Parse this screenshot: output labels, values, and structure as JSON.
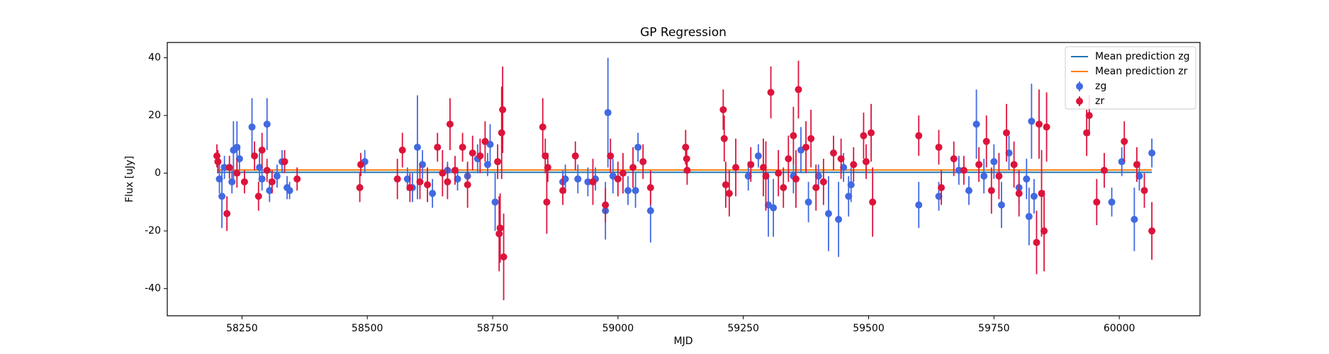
{
  "chart_data": {
    "type": "scatter",
    "title": "GP Regression",
    "x_label": "MJD",
    "y_label": "Flux [uJy]",
    "xlim": [
      58101,
      60161
    ],
    "ylim": [
      -49.4,
      45.3
    ],
    "xticks": [
      58250,
      58500,
      58750,
      59000,
      59250,
      59500,
      59750,
      60000
    ],
    "yticks": [
      -40,
      -20,
      0,
      20,
      40
    ],
    "legend": "upper right",
    "series": [
      {
        "name": "Mean prediction zg",
        "type": "line",
        "color": "#1f77b4",
        "x": [
          58200,
          60065
        ],
        "values": [
          0.3,
          0.3
        ]
      },
      {
        "name": "Mean prediction zr",
        "type": "line",
        "color": "#ff7f0e",
        "x": [
          58200,
          60065
        ],
        "values": [
          1.1,
          1.1
        ]
      },
      {
        "name": "zg",
        "type": "errorbar",
        "color": "#4169e1",
        "x": [
          58205,
          58210,
          58215,
          58230,
          58233,
          58240,
          58245,
          58270,
          58285,
          58290,
          58300,
          58305,
          58320,
          58330,
          58340,
          58345,
          58495,
          58580,
          58590,
          58600,
          58610,
          58630,
          58660,
          58680,
          58700,
          58720,
          58740,
          58745,
          58755,
          58890,
          58895,
          58920,
          58940,
          58955,
          58975,
          58980,
          58990,
          59020,
          59035,
          59040,
          59065,
          59260,
          59280,
          59300,
          59310,
          59350,
          59365,
          59380,
          59400,
          59420,
          59440,
          59450,
          59460,
          59465,
          59600,
          59640,
          59680,
          59700,
          59715,
          59730,
          59750,
          59765,
          59780,
          59800,
          59815,
          59820,
          59825,
          59830,
          59985,
          60005,
          60030,
          60040,
          60065
        ],
        "values": [
          -2,
          -8,
          2,
          -3,
          8,
          9,
          5,
          16,
          2,
          -2,
          17,
          -6,
          -1,
          4,
          -5,
          -6,
          4,
          -2,
          -5,
          9,
          3,
          -7,
          1,
          -2,
          -1,
          5,
          3,
          10,
          -10,
          -3,
          -2,
          -2,
          -3,
          -2,
          -13,
          21,
          -1,
          -6,
          -6,
          9,
          -13,
          -1,
          6,
          -11,
          -12,
          -1,
          8,
          -10,
          -1,
          -14,
          -16,
          2,
          -8,
          -4,
          -11,
          -8,
          1,
          -6,
          17,
          -1,
          4,
          -11,
          7,
          -5,
          -2,
          -15,
          18,
          -8,
          -10,
          4,
          -16,
          -1,
          7
        ],
        "errors": [
          5,
          11,
          4,
          4,
          10,
          9,
          4,
          10,
          5,
          4,
          9,
          4,
          4,
          4,
          4,
          3,
          4,
          4,
          5,
          18,
          5,
          5,
          3,
          4,
          4,
          5,
          4,
          7,
          10,
          4,
          5,
          5,
          5,
          4,
          10,
          19,
          6,
          5,
          6,
          5,
          11,
          5,
          4,
          11,
          10,
          6,
          8,
          7,
          4,
          13,
          13,
          5,
          7,
          6,
          8,
          5,
          5,
          5,
          12,
          6,
          6,
          8,
          6,
          6,
          7,
          10,
          13,
          6,
          5,
          5,
          11,
          5,
          5
        ]
      },
      {
        "name": "zr",
        "type": "errorbar",
        "color": "#dc143c",
        "x": [
          58200,
          58202,
          58220,
          58225,
          58240,
          58255,
          58275,
          58283,
          58290,
          58300,
          58310,
          58335,
          58360,
          58485,
          58487,
          58560,
          58570,
          58585,
          58605,
          58620,
          58640,
          58650,
          58660,
          58665,
          58675,
          58690,
          58700,
          58710,
          58725,
          58735,
          58760,
          58763,
          58765,
          58768,
          58770,
          58772,
          58850,
          58855,
          58858,
          58860,
          58890,
          58915,
          58950,
          58975,
          58985,
          59000,
          59010,
          59030,
          59050,
          59065,
          59135,
          59137,
          59138,
          59210,
          59212,
          59215,
          59222,
          59235,
          59265,
          59290,
          59295,
          59305,
          59320,
          59330,
          59340,
          59350,
          59355,
          59360,
          59375,
          59385,
          59395,
          59410,
          59430,
          59445,
          59470,
          59490,
          59495,
          59505,
          59508,
          59600,
          59640,
          59645,
          59670,
          59690,
          59720,
          59735,
          59745,
          59760,
          59775,
          59790,
          59800,
          59835,
          59840,
          59845,
          59850,
          59855,
          59935,
          59940,
          59955,
          59970,
          60010,
          60035,
          60050,
          60065
        ],
        "values": [
          6,
          4,
          -14,
          2,
          0,
          -3,
          6,
          -8,
          8,
          1,
          -3,
          4,
          -2,
          -5,
          3,
          -2,
          8,
          -5,
          -3,
          -4,
          9,
          0,
          -3,
          17,
          1,
          9,
          -4,
          7,
          6,
          11,
          4,
          -21,
          -19,
          14,
          22,
          -29,
          16,
          6,
          -10,
          2,
          -6,
          6,
          -3,
          -11,
          6,
          -2,
          0,
          2,
          4,
          -5,
          9,
          5,
          1,
          22,
          12,
          -4,
          -7,
          2,
          3,
          2,
          -1,
          28,
          0,
          -5,
          5,
          13,
          -2,
          29,
          9,
          12,
          -5,
          -3,
          7,
          5,
          3,
          13,
          4,
          14,
          -10,
          13,
          9,
          -5,
          5,
          1,
          3,
          11,
          -6,
          -1,
          14,
          3,
          -7,
          -24,
          17,
          -7,
          -20,
          16,
          14,
          20,
          -10,
          1,
          11,
          3,
          -6,
          -20
        ],
        "errors": [
          4,
          4,
          6,
          4,
          5,
          4,
          5,
          5,
          6,
          4,
          4,
          4,
          4,
          5,
          4,
          7,
          6,
          5,
          6,
          6,
          5,
          8,
          6,
          9,
          5,
          5,
          8,
          6,
          6,
          7,
          6,
          13,
          12,
          16,
          15,
          15,
          10,
          6,
          11,
          5,
          5,
          5,
          8,
          6,
          6,
          6,
          7,
          7,
          6,
          6,
          6,
          5,
          5,
          7,
          8,
          8,
          8,
          10,
          6,
          10,
          12,
          9,
          8,
          7,
          8,
          10,
          10,
          10,
          9,
          10,
          8,
          8,
          6,
          7,
          6,
          8,
          6,
          10,
          12,
          7,
          6,
          6,
          6,
          5,
          6,
          9,
          8,
          8,
          10,
          8,
          8,
          11,
          12,
          15,
          14,
          12,
          8,
          7,
          8,
          6,
          7,
          6,
          6,
          10
        ]
      }
    ]
  }
}
